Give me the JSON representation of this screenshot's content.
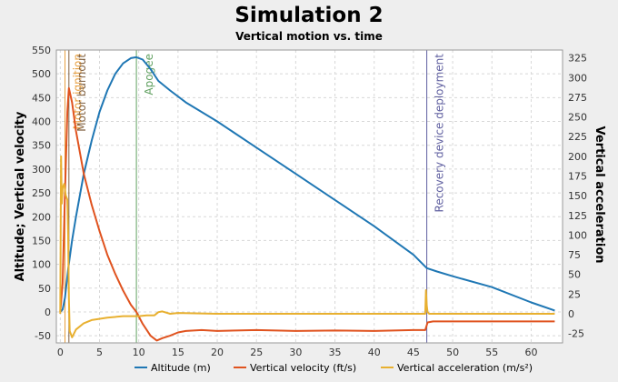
{
  "colors": {
    "background": "#eeeeee",
    "plot_background": "#ffffff",
    "grid": "#d8d8d8",
    "altitude": "#1f77b4",
    "vertical_velocity": "#e0531f",
    "vertical_acceleration": "#e8b030",
    "ignition": "#e8a040",
    "burnout": "#806040",
    "apogee": "#60a060",
    "recovery": "#6060a0"
  },
  "chart_data": {
    "type": "line",
    "title": "Simulation 2",
    "subtitle": "Vertical motion vs. time",
    "xlabel": "",
    "ylabel_left": "Altitude; Vertical velocity",
    "ylabel_right": "Vertical acceleration",
    "xlim": [
      -0.5,
      64
    ],
    "ylim_left": [
      -65,
      550
    ],
    "ylim_right": [
      -37,
      335
    ],
    "x_ticks": [
      "0",
      "5",
      "10",
      "15",
      "20",
      "25",
      "30",
      "35",
      "40",
      "45",
      "50",
      "55",
      "60"
    ],
    "y_ticks_left": [
      "-50",
      "0",
      "50",
      "100",
      "150",
      "200",
      "250",
      "300",
      "350",
      "400",
      "450",
      "500",
      "550"
    ],
    "y_ticks_right": [
      "-25",
      "0",
      "25",
      "50",
      "75",
      "100",
      "125",
      "150",
      "175",
      "200",
      "225",
      "250",
      "275",
      "300",
      "325"
    ],
    "grid": true,
    "legend_position": "bottom",
    "events": [
      {
        "label": "Motor ignition",
        "x": 0.6,
        "color_key": "ignition"
      },
      {
        "label": "Motor burnout",
        "x": 1.1,
        "color_key": "burnout"
      },
      {
        "label": "Apogee",
        "x": 9.7,
        "color_key": "apogee"
      },
      {
        "label": "Recovery device deployment",
        "x": 46.7,
        "color_key": "recovery"
      }
    ],
    "series": [
      {
        "name": "Altitude (m)",
        "axis": "left",
        "color_key": "altitude",
        "x": [
          0,
          0.3,
          0.6,
          1.0,
          1.5,
          2,
          3,
          4,
          5,
          6,
          7,
          8,
          9,
          9.7,
          10.5,
          11.5,
          12.5,
          14,
          16,
          20,
          25,
          30,
          35,
          40,
          45,
          46.7,
          48,
          50,
          55,
          60,
          63
        ],
        "y": [
          0,
          5,
          30,
          90,
          150,
          200,
          290,
          360,
          420,
          465,
          500,
          522,
          533,
          535,
          530,
          510,
          485,
          465,
          440,
          400,
          345,
          290,
          235,
          180,
          120,
          92,
          85,
          75,
          52,
          20,
          3
        ]
      },
      {
        "name": "Vertical velocity (ft/s)",
        "axis": "left",
        "color_key": "vertical_velocity",
        "x": [
          0,
          0.3,
          0.6,
          0.9,
          1.1,
          1.5,
          2,
          3,
          4,
          5,
          6,
          7,
          8,
          9,
          9.7,
          10.5,
          11.5,
          12.3,
          13,
          14,
          15,
          16,
          18,
          20,
          25,
          30,
          35,
          40,
          45,
          46.5,
          46.8,
          47.5,
          55,
          63
        ],
        "y": [
          0,
          60,
          250,
          420,
          470,
          440,
          380,
          290,
          225,
          170,
          120,
          80,
          45,
          15,
          0,
          -25,
          -50,
          -60,
          -55,
          -50,
          -43,
          -40,
          -38,
          -40,
          -38,
          -40,
          -39,
          -40,
          -38,
          -38,
          -22,
          -20,
          -20,
          -20
        ]
      },
      {
        "name": "Vertical acceleration (m/s²)",
        "axis": "right",
        "color_key": "vertical_acceleration",
        "x": [
          0,
          0.1,
          0.2,
          0.3,
          0.5,
          0.7,
          0.9,
          1.0,
          1.1,
          1.2,
          1.5,
          2,
          3,
          4,
          6,
          8,
          10,
          11,
          12,
          12.5,
          13,
          14,
          15,
          20,
          30,
          40,
          46.5,
          46.6,
          46.7,
          46.8,
          47,
          48,
          55,
          63
        ],
        "y": [
          0,
          200,
          140,
          160,
          165,
          150,
          145,
          100,
          20,
          -22,
          -30,
          -20,
          -12,
          -8,
          -5,
          -3,
          -3,
          -2,
          -2,
          2,
          3,
          0,
          1,
          0,
          0,
          0,
          0,
          30,
          10,
          2,
          0,
          0,
          0,
          0
        ]
      }
    ]
  }
}
